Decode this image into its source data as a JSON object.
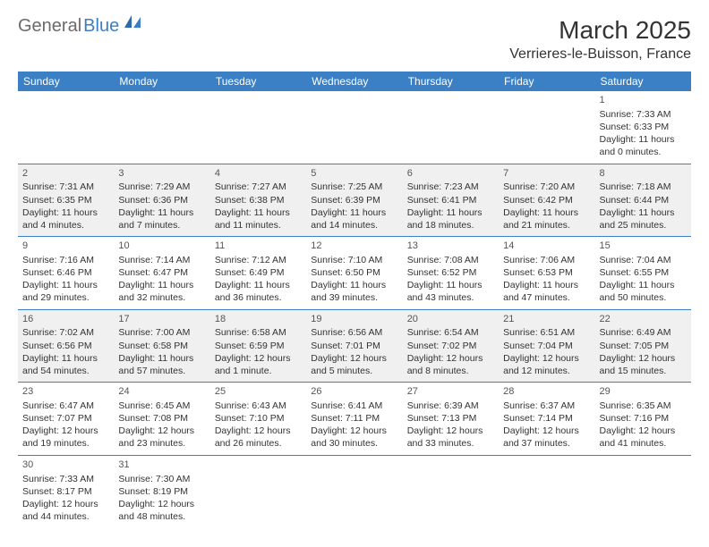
{
  "logo": {
    "text1": "General",
    "text2": "Blue"
  },
  "title": "March 2025",
  "location": "Verrieres-le-Buisson, France",
  "colors": {
    "header_bg": "#3b7fc4",
    "header_text": "#ffffff",
    "shaded_bg": "#f0f0f0",
    "border": "#3b7fc4",
    "logo_gray": "#6b6b6b",
    "logo_blue": "#3b7fc4"
  },
  "day_headers": [
    "Sunday",
    "Monday",
    "Tuesday",
    "Wednesday",
    "Thursday",
    "Friday",
    "Saturday"
  ],
  "weeks": [
    [
      {
        "day": "",
        "sunrise": "",
        "sunset": "",
        "daylight": ""
      },
      {
        "day": "",
        "sunrise": "",
        "sunset": "",
        "daylight": ""
      },
      {
        "day": "",
        "sunrise": "",
        "sunset": "",
        "daylight": ""
      },
      {
        "day": "",
        "sunrise": "",
        "sunset": "",
        "daylight": ""
      },
      {
        "day": "",
        "sunrise": "",
        "sunset": "",
        "daylight": ""
      },
      {
        "day": "",
        "sunrise": "",
        "sunset": "",
        "daylight": ""
      },
      {
        "day": "1",
        "sunrise": "Sunrise: 7:33 AM",
        "sunset": "Sunset: 6:33 PM",
        "daylight": "Daylight: 11 hours and 0 minutes."
      }
    ],
    [
      {
        "day": "2",
        "sunrise": "Sunrise: 7:31 AM",
        "sunset": "Sunset: 6:35 PM",
        "daylight": "Daylight: 11 hours and 4 minutes."
      },
      {
        "day": "3",
        "sunrise": "Sunrise: 7:29 AM",
        "sunset": "Sunset: 6:36 PM",
        "daylight": "Daylight: 11 hours and 7 minutes."
      },
      {
        "day": "4",
        "sunrise": "Sunrise: 7:27 AM",
        "sunset": "Sunset: 6:38 PM",
        "daylight": "Daylight: 11 hours and 11 minutes."
      },
      {
        "day": "5",
        "sunrise": "Sunrise: 7:25 AM",
        "sunset": "Sunset: 6:39 PM",
        "daylight": "Daylight: 11 hours and 14 minutes."
      },
      {
        "day": "6",
        "sunrise": "Sunrise: 7:23 AM",
        "sunset": "Sunset: 6:41 PM",
        "daylight": "Daylight: 11 hours and 18 minutes."
      },
      {
        "day": "7",
        "sunrise": "Sunrise: 7:20 AM",
        "sunset": "Sunset: 6:42 PM",
        "daylight": "Daylight: 11 hours and 21 minutes."
      },
      {
        "day": "8",
        "sunrise": "Sunrise: 7:18 AM",
        "sunset": "Sunset: 6:44 PM",
        "daylight": "Daylight: 11 hours and 25 minutes."
      }
    ],
    [
      {
        "day": "9",
        "sunrise": "Sunrise: 7:16 AM",
        "sunset": "Sunset: 6:46 PM",
        "daylight": "Daylight: 11 hours and 29 minutes."
      },
      {
        "day": "10",
        "sunrise": "Sunrise: 7:14 AM",
        "sunset": "Sunset: 6:47 PM",
        "daylight": "Daylight: 11 hours and 32 minutes."
      },
      {
        "day": "11",
        "sunrise": "Sunrise: 7:12 AM",
        "sunset": "Sunset: 6:49 PM",
        "daylight": "Daylight: 11 hours and 36 minutes."
      },
      {
        "day": "12",
        "sunrise": "Sunrise: 7:10 AM",
        "sunset": "Sunset: 6:50 PM",
        "daylight": "Daylight: 11 hours and 39 minutes."
      },
      {
        "day": "13",
        "sunrise": "Sunrise: 7:08 AM",
        "sunset": "Sunset: 6:52 PM",
        "daylight": "Daylight: 11 hours and 43 minutes."
      },
      {
        "day": "14",
        "sunrise": "Sunrise: 7:06 AM",
        "sunset": "Sunset: 6:53 PM",
        "daylight": "Daylight: 11 hours and 47 minutes."
      },
      {
        "day": "15",
        "sunrise": "Sunrise: 7:04 AM",
        "sunset": "Sunset: 6:55 PM",
        "daylight": "Daylight: 11 hours and 50 minutes."
      }
    ],
    [
      {
        "day": "16",
        "sunrise": "Sunrise: 7:02 AM",
        "sunset": "Sunset: 6:56 PM",
        "daylight": "Daylight: 11 hours and 54 minutes."
      },
      {
        "day": "17",
        "sunrise": "Sunrise: 7:00 AM",
        "sunset": "Sunset: 6:58 PM",
        "daylight": "Daylight: 11 hours and 57 minutes."
      },
      {
        "day": "18",
        "sunrise": "Sunrise: 6:58 AM",
        "sunset": "Sunset: 6:59 PM",
        "daylight": "Daylight: 12 hours and 1 minute."
      },
      {
        "day": "19",
        "sunrise": "Sunrise: 6:56 AM",
        "sunset": "Sunset: 7:01 PM",
        "daylight": "Daylight: 12 hours and 5 minutes."
      },
      {
        "day": "20",
        "sunrise": "Sunrise: 6:54 AM",
        "sunset": "Sunset: 7:02 PM",
        "daylight": "Daylight: 12 hours and 8 minutes."
      },
      {
        "day": "21",
        "sunrise": "Sunrise: 6:51 AM",
        "sunset": "Sunset: 7:04 PM",
        "daylight": "Daylight: 12 hours and 12 minutes."
      },
      {
        "day": "22",
        "sunrise": "Sunrise: 6:49 AM",
        "sunset": "Sunset: 7:05 PM",
        "daylight": "Daylight: 12 hours and 15 minutes."
      }
    ],
    [
      {
        "day": "23",
        "sunrise": "Sunrise: 6:47 AM",
        "sunset": "Sunset: 7:07 PM",
        "daylight": "Daylight: 12 hours and 19 minutes."
      },
      {
        "day": "24",
        "sunrise": "Sunrise: 6:45 AM",
        "sunset": "Sunset: 7:08 PM",
        "daylight": "Daylight: 12 hours and 23 minutes."
      },
      {
        "day": "25",
        "sunrise": "Sunrise: 6:43 AM",
        "sunset": "Sunset: 7:10 PM",
        "daylight": "Daylight: 12 hours and 26 minutes."
      },
      {
        "day": "26",
        "sunrise": "Sunrise: 6:41 AM",
        "sunset": "Sunset: 7:11 PM",
        "daylight": "Daylight: 12 hours and 30 minutes."
      },
      {
        "day": "27",
        "sunrise": "Sunrise: 6:39 AM",
        "sunset": "Sunset: 7:13 PM",
        "daylight": "Daylight: 12 hours and 33 minutes."
      },
      {
        "day": "28",
        "sunrise": "Sunrise: 6:37 AM",
        "sunset": "Sunset: 7:14 PM",
        "daylight": "Daylight: 12 hours and 37 minutes."
      },
      {
        "day": "29",
        "sunrise": "Sunrise: 6:35 AM",
        "sunset": "Sunset: 7:16 PM",
        "daylight": "Daylight: 12 hours and 41 minutes."
      }
    ],
    [
      {
        "day": "30",
        "sunrise": "Sunrise: 7:33 AM",
        "sunset": "Sunset: 8:17 PM",
        "daylight": "Daylight: 12 hours and 44 minutes."
      },
      {
        "day": "31",
        "sunrise": "Sunrise: 7:30 AM",
        "sunset": "Sunset: 8:19 PM",
        "daylight": "Daylight: 12 hours and 48 minutes."
      },
      {
        "day": "",
        "sunrise": "",
        "sunset": "",
        "daylight": ""
      },
      {
        "day": "",
        "sunrise": "",
        "sunset": "",
        "daylight": ""
      },
      {
        "day": "",
        "sunrise": "",
        "sunset": "",
        "daylight": ""
      },
      {
        "day": "",
        "sunrise": "",
        "sunset": "",
        "daylight": ""
      },
      {
        "day": "",
        "sunrise": "",
        "sunset": "",
        "daylight": ""
      }
    ]
  ],
  "shaded_rows": [
    1,
    3
  ]
}
